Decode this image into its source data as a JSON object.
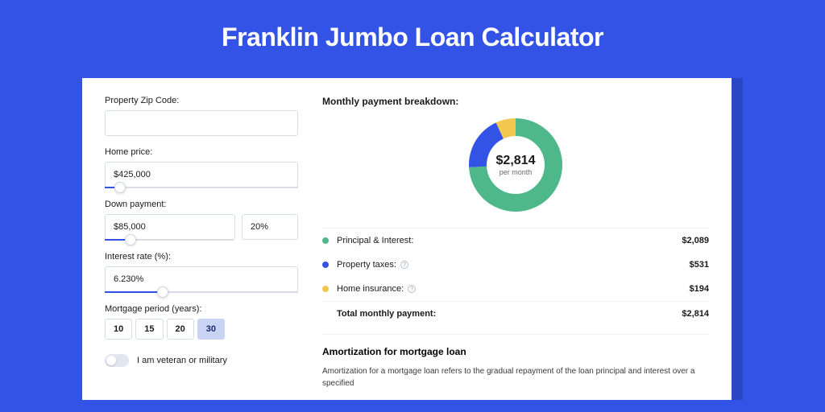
{
  "title": "Franklin Jumbo Loan Calculator",
  "colors": {
    "page_bg": "#3353e7",
    "shadow_bg": "#2a45c6",
    "card_bg": "#ffffff",
    "accent": "#3353e7",
    "seg_active_bg": "#c9d4f5",
    "border": "#d8dde5",
    "text": "#1a1a1a"
  },
  "form": {
    "zip": {
      "label": "Property Zip Code:",
      "value": ""
    },
    "home_price": {
      "label": "Home price:",
      "value": "$425,000",
      "slider_pct": 8
    },
    "down_payment": {
      "label": "Down payment:",
      "amount": "$85,000",
      "pct": "20%",
      "slider_pct": 20
    },
    "interest_rate": {
      "label": "Interest rate (%):",
      "value": "6.230%",
      "slider_pct": 30
    },
    "mortgage_period": {
      "label": "Mortgage period (years):",
      "options": [
        "10",
        "15",
        "20",
        "30"
      ],
      "active": "30"
    },
    "veteran": {
      "label": "I am veteran or military",
      "on": false
    }
  },
  "breakdown": {
    "title": "Monthly payment breakdown:",
    "donut": {
      "amount": "$2,814",
      "sub": "per month",
      "slices": [
        {
          "name": "principal_interest",
          "color": "#4eb88a",
          "pct": 74.2
        },
        {
          "name": "property_taxes",
          "color": "#3353e7",
          "pct": 18.9
        },
        {
          "name": "home_insurance",
          "color": "#f1c84d",
          "pct": 6.9
        }
      ]
    },
    "items": [
      {
        "label": "Principal & Interest:",
        "value": "$2,089",
        "color": "#4eb88a",
        "info": false
      },
      {
        "label": "Property taxes:",
        "value": "$531",
        "color": "#3353e7",
        "info": true
      },
      {
        "label": "Home insurance:",
        "value": "$194",
        "color": "#f1c84d",
        "info": true
      }
    ],
    "total": {
      "label": "Total monthly payment:",
      "value": "$2,814"
    }
  },
  "amortization": {
    "title": "Amortization for mortgage loan",
    "text": "Amortization for a mortgage loan refers to the gradual repayment of the loan principal and interest over a specified"
  }
}
